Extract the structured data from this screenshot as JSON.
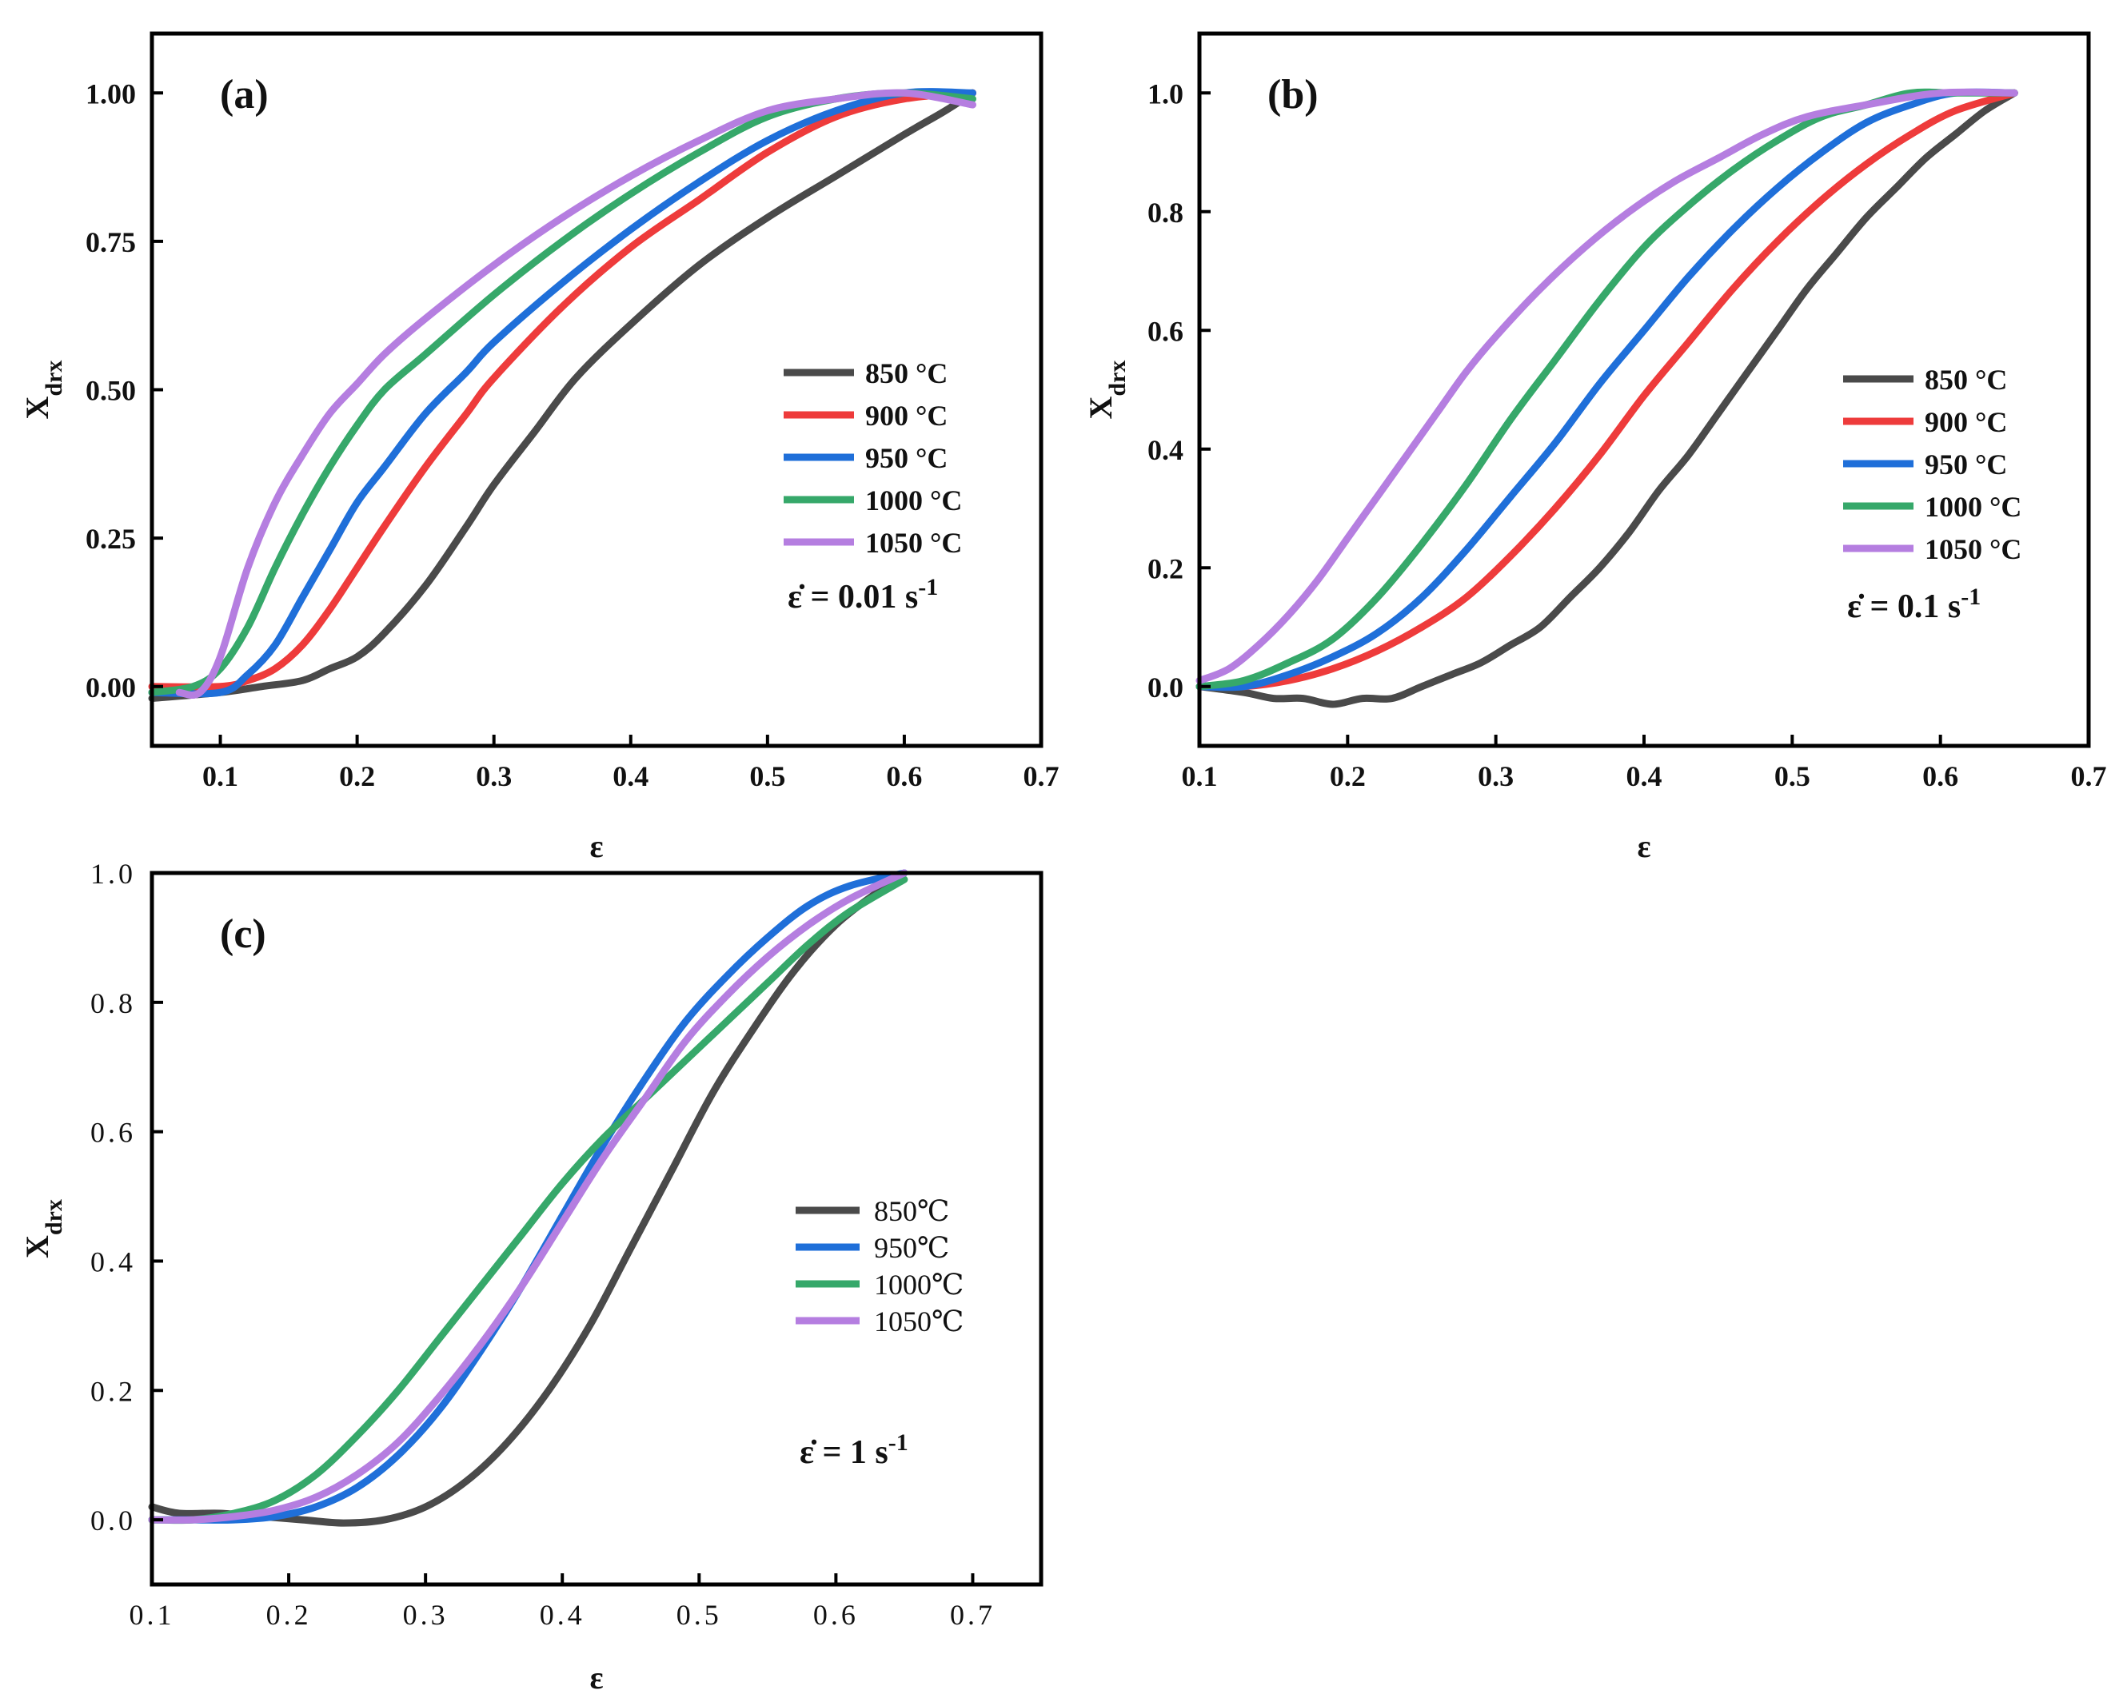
{
  "colors": {
    "850": "#4a4a4a",
    "900": "#ee3b3b",
    "950": "#1f6fd9",
    "1000": "#36a86a",
    "1050": "#b57ee0"
  },
  "chart_data": [
    {
      "type": "line",
      "panel_label": "(a)",
      "xlabel": "ε",
      "ylabel": "X",
      "ylabel_sub": "drx",
      "xlim": [
        0.05,
        0.7
      ],
      "ylim": [
        -0.1,
        1.1
      ],
      "xticks": [
        0.1,
        0.2,
        0.3,
        0.4,
        0.5,
        0.6,
        0.7
      ],
      "xtick_labels": [
        "0.1",
        "0.2",
        "0.3",
        "0.4",
        "0.5",
        "0.6",
        "0.7"
      ],
      "yticks": [
        0.0,
        0.25,
        0.5,
        0.75,
        1.0
      ],
      "ytick_labels": [
        "0.00",
        "0.25",
        "0.50",
        "0.75",
        "1.00"
      ],
      "rate_prefix": "ε̇ = 0.01 s",
      "rate_exp": "-1",
      "series": [
        {
          "name": "850 °C",
          "color_key": "850",
          "x": [
            0.05,
            0.1,
            0.13,
            0.16,
            0.18,
            0.2,
            0.22,
            0.25,
            0.28,
            0.3,
            0.33,
            0.36,
            0.4,
            0.45,
            0.5,
            0.55,
            0.6,
            0.63,
            0.65
          ],
          "y": [
            -0.02,
            -0.01,
            0.0,
            0.01,
            0.03,
            0.05,
            0.09,
            0.17,
            0.27,
            0.34,
            0.43,
            0.52,
            0.61,
            0.71,
            0.79,
            0.86,
            0.93,
            0.97,
            1.0
          ]
        },
        {
          "name": "900 °C",
          "color_key": "900",
          "x": [
            0.05,
            0.1,
            0.12,
            0.14,
            0.16,
            0.18,
            0.2,
            0.22,
            0.25,
            0.28,
            0.3,
            0.35,
            0.4,
            0.45,
            0.5,
            0.55,
            0.6,
            0.65
          ],
          "y": [
            0.0,
            0.0,
            0.01,
            0.03,
            0.07,
            0.13,
            0.2,
            0.27,
            0.37,
            0.46,
            0.52,
            0.64,
            0.74,
            0.82,
            0.9,
            0.96,
            0.99,
            1.0
          ]
        },
        {
          "name": "950 °C",
          "color_key": "950",
          "x": [
            0.05,
            0.1,
            0.12,
            0.14,
            0.16,
            0.18,
            0.2,
            0.22,
            0.25,
            0.28,
            0.3,
            0.35,
            0.4,
            0.45,
            0.5,
            0.55,
            0.6,
            0.65
          ],
          "y": [
            -0.01,
            -0.01,
            0.02,
            0.07,
            0.15,
            0.23,
            0.31,
            0.37,
            0.46,
            0.53,
            0.58,
            0.68,
            0.77,
            0.85,
            0.92,
            0.97,
            1.0,
            1.0
          ]
        },
        {
          "name": "1000 °C",
          "color_key": "1000",
          "x": [
            0.05,
            0.08,
            0.1,
            0.12,
            0.14,
            0.16,
            0.18,
            0.2,
            0.22,
            0.25,
            0.3,
            0.35,
            0.4,
            0.45,
            0.5,
            0.55,
            0.6,
            0.65
          ],
          "y": [
            -0.01,
            0.0,
            0.03,
            0.1,
            0.2,
            0.29,
            0.37,
            0.44,
            0.5,
            0.56,
            0.66,
            0.75,
            0.83,
            0.9,
            0.96,
            0.99,
            1.0,
            0.99
          ]
        },
        {
          "name": "1050 °C",
          "color_key": "1050",
          "x": [
            0.07,
            0.085,
            0.1,
            0.12,
            0.14,
            0.16,
            0.18,
            0.2,
            0.22,
            0.25,
            0.3,
            0.35,
            0.4,
            0.45,
            0.5,
            0.55,
            0.6,
            0.65
          ],
          "y": [
            -0.01,
            -0.01,
            0.05,
            0.2,
            0.31,
            0.39,
            0.46,
            0.51,
            0.56,
            0.62,
            0.71,
            0.79,
            0.86,
            0.92,
            0.97,
            0.99,
            1.0,
            0.98
          ]
        }
      ]
    },
    {
      "type": "line",
      "panel_label": "(b)",
      "xlabel": "ε",
      "ylabel": "X",
      "ylabel_sub": "drx",
      "xlim": [
        0.1,
        0.7
      ],
      "ylim": [
        -0.1,
        1.1
      ],
      "xticks": [
        0.1,
        0.2,
        0.3,
        0.4,
        0.5,
        0.6,
        0.7
      ],
      "xtick_labels": [
        "0.1",
        "0.2",
        "0.3",
        "0.4",
        "0.5",
        "0.6",
        "0.7"
      ],
      "yticks": [
        0.0,
        0.2,
        0.4,
        0.6,
        0.8,
        1.0
      ],
      "ytick_labels": [
        "0.0",
        "0.2",
        "0.4",
        "0.6",
        "0.8",
        "1.0"
      ],
      "rate_prefix": "ε̇ = 0.1 s",
      "rate_exp": "-1",
      "series": [
        {
          "name": "850 °C",
          "color_key": "850",
          "x": [
            0.1,
            0.13,
            0.15,
            0.17,
            0.19,
            0.21,
            0.23,
            0.25,
            0.27,
            0.29,
            0.31,
            0.33,
            0.35,
            0.37,
            0.39,
            0.41,
            0.43,
            0.45,
            0.47,
            0.49,
            0.51,
            0.53,
            0.55,
            0.57,
            0.59,
            0.61,
            0.63,
            0.65
          ],
          "y": [
            0.0,
            -0.01,
            -0.02,
            -0.02,
            -0.03,
            -0.02,
            -0.02,
            0.0,
            0.02,
            0.04,
            0.07,
            0.1,
            0.15,
            0.2,
            0.26,
            0.33,
            0.39,
            0.46,
            0.53,
            0.6,
            0.67,
            0.73,
            0.79,
            0.84,
            0.89,
            0.93,
            0.97,
            1.0
          ]
        },
        {
          "name": "900 °C",
          "color_key": "900",
          "x": [
            0.1,
            0.13,
            0.16,
            0.19,
            0.22,
            0.25,
            0.28,
            0.31,
            0.34,
            0.37,
            0.4,
            0.43,
            0.46,
            0.49,
            0.52,
            0.55,
            0.58,
            0.61,
            0.65
          ],
          "y": [
            0.0,
            0.0,
            0.01,
            0.03,
            0.06,
            0.1,
            0.15,
            0.22,
            0.3,
            0.39,
            0.49,
            0.58,
            0.67,
            0.75,
            0.82,
            0.88,
            0.93,
            0.97,
            1.0
          ]
        },
        {
          "name": "950 °C",
          "color_key": "950",
          "x": [
            0.1,
            0.13,
            0.16,
            0.19,
            0.22,
            0.25,
            0.28,
            0.31,
            0.34,
            0.37,
            0.4,
            0.43,
            0.46,
            0.49,
            0.52,
            0.55,
            0.58,
            0.61,
            0.65
          ],
          "y": [
            0.0,
            0.0,
            0.02,
            0.05,
            0.09,
            0.15,
            0.23,
            0.32,
            0.41,
            0.51,
            0.6,
            0.69,
            0.77,
            0.84,
            0.9,
            0.95,
            0.98,
            1.0,
            1.0
          ]
        },
        {
          "name": "1000 °C",
          "color_key": "1000",
          "x": [
            0.1,
            0.13,
            0.16,
            0.19,
            0.22,
            0.25,
            0.28,
            0.31,
            0.34,
            0.37,
            0.4,
            0.43,
            0.46,
            0.49,
            0.52,
            0.55,
            0.58,
            0.61,
            0.65
          ],
          "y": [
            0.0,
            0.01,
            0.04,
            0.08,
            0.15,
            0.24,
            0.34,
            0.45,
            0.55,
            0.65,
            0.74,
            0.81,
            0.87,
            0.92,
            0.96,
            0.98,
            1.0,
            1.0,
            1.0
          ]
        },
        {
          "name": "1050 °C",
          "color_key": "1050",
          "x": [
            0.1,
            0.12,
            0.14,
            0.16,
            0.18,
            0.2,
            0.22,
            0.24,
            0.26,
            0.28,
            0.3,
            0.33,
            0.36,
            0.39,
            0.42,
            0.45,
            0.48,
            0.51,
            0.55,
            0.6,
            0.65
          ],
          "y": [
            0.01,
            0.03,
            0.07,
            0.12,
            0.18,
            0.25,
            0.32,
            0.39,
            0.46,
            0.53,
            0.59,
            0.67,
            0.74,
            0.8,
            0.85,
            0.89,
            0.93,
            0.96,
            0.98,
            1.0,
            1.0
          ]
        }
      ]
    },
    {
      "type": "line",
      "panel_label": "(c)",
      "xlabel": "ε",
      "ylabel": "X",
      "ylabel_sub": "drx",
      "xlim": [
        0.1,
        0.75
      ],
      "ylim": [
        -0.1,
        1.0
      ],
      "xticks": [
        0.1,
        0.2,
        0.3,
        0.4,
        0.5,
        0.6,
        0.7
      ],
      "xtick_labels": [
        "0.1",
        "0.2",
        "0.3",
        "0.4",
        "0.5",
        "0.6",
        "0.7"
      ],
      "yticks": [
        0.0,
        0.2,
        0.4,
        0.6,
        0.8,
        1.0
      ],
      "ytick_labels": [
        "0.0",
        "0.2",
        "0.4",
        "0.6",
        "0.8",
        "1.0"
      ],
      "rate_prefix": "ε̇ = 1 s",
      "rate_exp": "-1",
      "series": [
        {
          "name": "850℃",
          "color_key": "850",
          "x": [
            0.1,
            0.12,
            0.15,
            0.18,
            0.21,
            0.24,
            0.27,
            0.3,
            0.33,
            0.36,
            0.39,
            0.42,
            0.45,
            0.48,
            0.51,
            0.54,
            0.57,
            0.6,
            0.63,
            0.65
          ],
          "y": [
            0.02,
            0.01,
            0.01,
            0.005,
            0.0,
            -0.005,
            0.0,
            0.02,
            0.06,
            0.12,
            0.2,
            0.3,
            0.42,
            0.54,
            0.66,
            0.76,
            0.85,
            0.92,
            0.97,
            1.0
          ]
        },
        {
          "name": "950℃",
          "color_key": "950",
          "x": [
            0.1,
            0.13,
            0.16,
            0.19,
            0.22,
            0.25,
            0.28,
            0.31,
            0.34,
            0.37,
            0.4,
            0.43,
            0.46,
            0.49,
            0.52,
            0.55,
            0.58,
            0.61,
            0.65
          ],
          "y": [
            0.0,
            0.0,
            0.0,
            0.005,
            0.02,
            0.05,
            0.1,
            0.17,
            0.26,
            0.36,
            0.47,
            0.58,
            0.68,
            0.77,
            0.84,
            0.9,
            0.95,
            0.98,
            1.0
          ]
        },
        {
          "name": "1000℃",
          "color_key": "1000",
          "x": [
            0.1,
            0.13,
            0.16,
            0.19,
            0.22,
            0.25,
            0.28,
            0.31,
            0.34,
            0.37,
            0.4,
            0.43,
            0.46,
            0.49,
            0.52,
            0.55,
            0.58,
            0.61,
            0.65
          ],
          "y": [
            0.0,
            0.0,
            0.01,
            0.03,
            0.07,
            0.13,
            0.2,
            0.28,
            0.36,
            0.44,
            0.52,
            0.59,
            0.65,
            0.71,
            0.77,
            0.83,
            0.89,
            0.94,
            0.99
          ]
        },
        {
          "name": "1050℃",
          "color_key": "1050",
          "x": [
            0.1,
            0.13,
            0.16,
            0.19,
            0.22,
            0.25,
            0.28,
            0.31,
            0.34,
            0.37,
            0.4,
            0.43,
            0.46,
            0.49,
            0.52,
            0.55,
            0.58,
            0.61,
            0.65
          ],
          "y": [
            0.0,
            0.0,
            0.005,
            0.015,
            0.035,
            0.07,
            0.12,
            0.19,
            0.27,
            0.36,
            0.46,
            0.56,
            0.65,
            0.74,
            0.81,
            0.87,
            0.92,
            0.96,
            1.0
          ]
        }
      ]
    }
  ]
}
